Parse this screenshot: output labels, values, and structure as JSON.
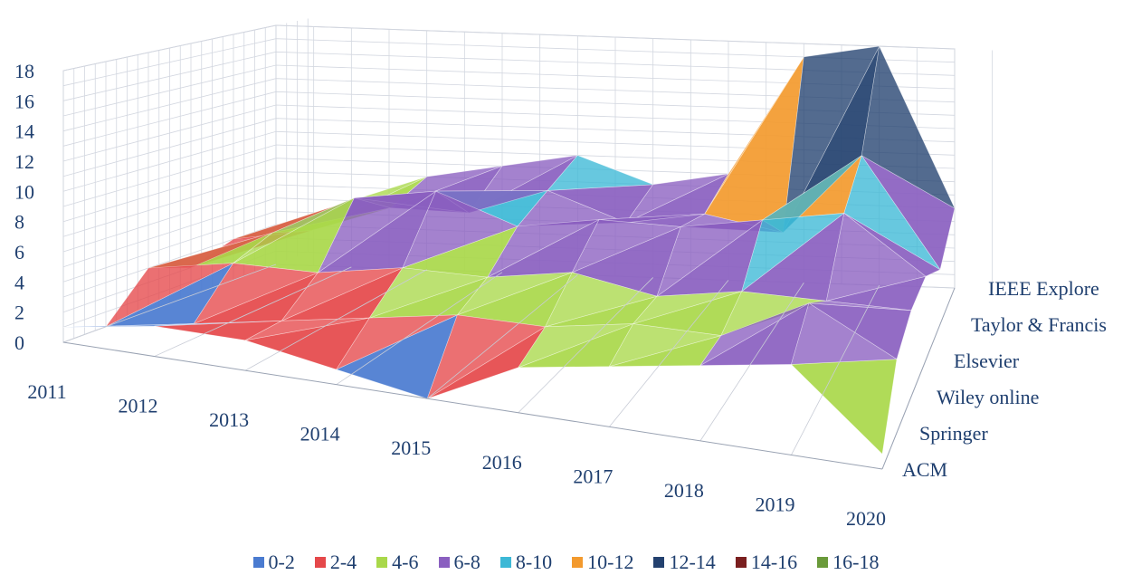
{
  "chart_data": {
    "type": "surface",
    "title": "",
    "categories": [
      "2011",
      "2012",
      "2013",
      "2014",
      "2015",
      "2016",
      "2017",
      "2018",
      "2019",
      "2020"
    ],
    "series": [
      {
        "name": "ACM",
        "values": [
          1,
          2,
          2,
          1,
          0,
          3,
          4,
          5,
          6,
          1
        ]
      },
      {
        "name": "Springer",
        "values": [
          0,
          1,
          2,
          3,
          4,
          4,
          5,
          5,
          8,
          5
        ]
      },
      {
        "name": "Wiley online",
        "values": [
          3,
          4,
          4,
          5,
          5,
          6,
          5,
          6,
          6,
          6
        ]
      },
      {
        "name": "Elsevier",
        "values": [
          2,
          5,
          8,
          9,
          7,
          8,
          8,
          9,
          10,
          6
        ]
      },
      {
        "name": "Taylor & Francis",
        "values": [
          3,
          4,
          6,
          6,
          8,
          6,
          7,
          6,
          12,
          4
        ]
      },
      {
        "name": "IEEE Explore",
        "values": [
          2,
          5,
          7,
          8,
          9,
          7,
          8,
          17,
          18,
          6
        ]
      }
    ],
    "ylim": [
      0,
      18
    ],
    "yticks": [
      "0",
      "2",
      "4",
      "6",
      "8",
      "10",
      "12",
      "14",
      "16",
      "18"
    ],
    "bands": [
      {
        "label": "0-2",
        "color": "#4a7bd0"
      },
      {
        "label": "2-4",
        "color": "#e5484a"
      },
      {
        "label": "4-6",
        "color": "#a9d84a"
      },
      {
        "label": "6-8",
        "color": "#8a5fc0"
      },
      {
        "label": "8-10",
        "color": "#3cb8d6"
      },
      {
        "label": "10-12",
        "color": "#f39a2e"
      },
      {
        "label": "12-14",
        "color": "#23416f"
      },
      {
        "label": "14-16",
        "color": "#7a1f1f"
      },
      {
        "label": "16-18",
        "color": "#6a9a3a"
      }
    ],
    "grid": true,
    "legend_position": "bottom"
  }
}
